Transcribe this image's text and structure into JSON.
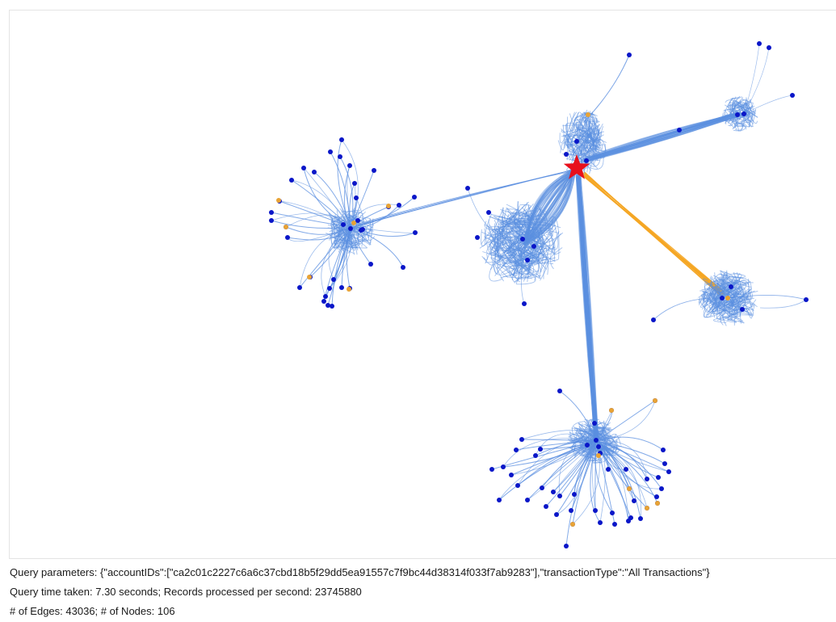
{
  "colors": {
    "edge": "#5b8fe0",
    "edge_highlight": "#f5a623",
    "node_account": "#0a16c8",
    "node_merchant": "#e8a335",
    "query_node": "#e8101c"
  },
  "query_node": {
    "shape": "star-icon"
  },
  "info": {
    "params_label": "Query parameters:",
    "params_value": " {\"accountIDs\":[\"ca2c01c2227c6a6c37cbd18b5f29dd5ea91557c7f9bc44d38314f033f7ab9283\"],\"transactionType\":\"All Transactions\"}",
    "time_label": "Query time taken:",
    "time_value": " 7.30 seconds; Records processed per second: 23745880",
    "edges_label": "# of Edges:",
    "edges_value": " 43036; # of Nodes: 106"
  }
}
